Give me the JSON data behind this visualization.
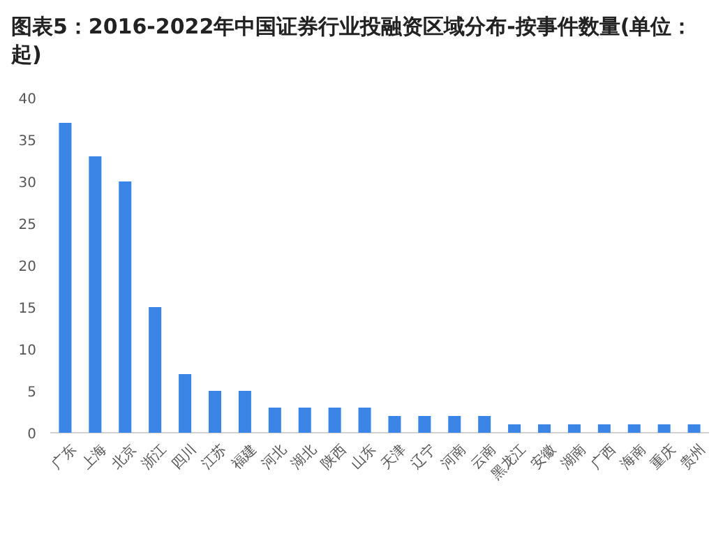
{
  "chart_data": {
    "type": "bar",
    "title": "图表5：2016-2022年中国证券行业投融资区域分布-按事件数量(单位：起)",
    "categories": [
      "广东",
      "上海",
      "北京",
      "浙江",
      "四川",
      "江苏",
      "福建",
      "河北",
      "湖北",
      "陕西",
      "山东",
      "天津",
      "辽宁",
      "河南",
      "云南",
      "黑龙江",
      "安徽",
      "湖南",
      "广西",
      "海南",
      "重庆",
      "贵州"
    ],
    "values": [
      37,
      33,
      30,
      15,
      7,
      5,
      5,
      3,
      3,
      3,
      3,
      2,
      2,
      2,
      2,
      1,
      1,
      1,
      1,
      1,
      1,
      1
    ],
    "color": "#3a85e6",
    "ylim": [
      0,
      40
    ],
    "yticks": [
      0,
      5,
      10,
      15,
      20,
      25,
      30,
      35,
      40
    ],
    "grid": false
  }
}
